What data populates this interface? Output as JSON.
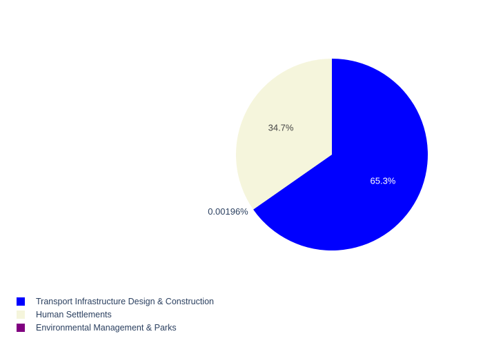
{
  "chart_data": {
    "type": "pie",
    "sort": false,
    "direction": "clockwise",
    "start_angle_deg": 90,
    "slices": [
      {
        "label": "Transport Infrastructure Design & Construction",
        "value": 65.29804,
        "text": "65.3%",
        "color": "#0000ff",
        "text_color": "#ffffff"
      },
      {
        "label": "Environmental Management & Parks",
        "value": 0.00196,
        "text": "0.00196%",
        "color": "#800080",
        "text_color": "#2a3f5f"
      },
      {
        "label": "Human Settlements",
        "value": 34.7,
        "text": "34.7%",
        "color": "#f5f5dc",
        "text_color": "#444444"
      }
    ],
    "legend_order": [
      0,
      2,
      1
    ],
    "legend_position": "bottom-left"
  }
}
